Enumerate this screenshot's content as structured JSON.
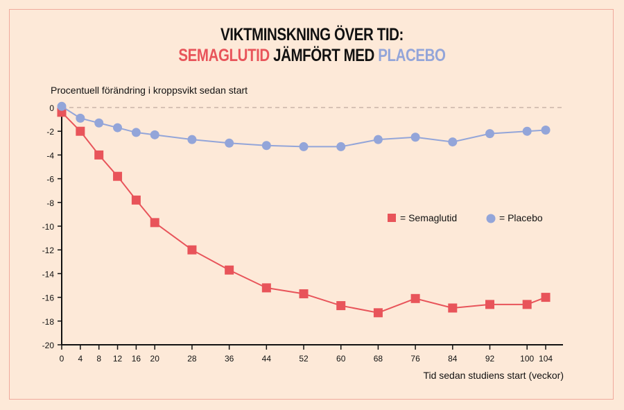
{
  "title_line1": "VIKTMINSKNING ÖVER TID:",
  "title_line2": {
    "part1": "SEMAGLUTID",
    "part2": " JÄMFÖRT MED ",
    "part3": "PLACEBO"
  },
  "chart_data": {
    "type": "line",
    "title": "VIKTMINSKNING ÖVER TID: SEMAGLUTID JÄMFÖRT MED PLACEBO",
    "ylabel": "Procentuell förändring i kroppsvikt sedan start",
    "xlabel": "Tid sedan studiens start (veckor)",
    "x": [
      0,
      4,
      8,
      12,
      16,
      20,
      28,
      36,
      44,
      52,
      60,
      68,
      76,
      84,
      92,
      100,
      104
    ],
    "xticks": [
      0,
      4,
      8,
      12,
      16,
      20,
      28,
      36,
      44,
      52,
      60,
      68,
      76,
      84,
      92,
      100,
      104
    ],
    "yticks": [
      0,
      -2,
      -4,
      -6,
      -8,
      -10,
      -12,
      -14,
      -16,
      -18,
      -20
    ],
    "ylim": [
      -20,
      0
    ],
    "xlim": [
      0,
      108
    ],
    "grid": false,
    "reference_line": 0,
    "legend_placement": "right-middle",
    "series": [
      {
        "name": "Semaglutid",
        "marker": "square",
        "color": "#e8545a",
        "values": [
          -0.4,
          -2.0,
          -4.0,
          -5.8,
          -7.8,
          -9.7,
          -12.0,
          -13.7,
          -15.2,
          -15.7,
          -16.7,
          -17.3,
          -16.1,
          -16.9,
          -16.6,
          -16.6,
          -16.0
        ]
      },
      {
        "name": "Placebo",
        "marker": "circle",
        "color": "#93a5d9",
        "values": [
          0.1,
          -0.9,
          -1.3,
          -1.7,
          -2.1,
          -2.3,
          -2.7,
          -3.0,
          -3.2,
          -3.3,
          -3.3,
          -2.7,
          -2.5,
          -2.9,
          -2.2,
          -2.0,
          -1.9
        ]
      }
    ],
    "legend": [
      "= Semaglutid",
      "= Placebo"
    ]
  },
  "colors": {
    "background": "#fde9d8",
    "border": "#efa99c",
    "semaglutid": "#e8545a",
    "placebo": "#93a5d9"
  }
}
